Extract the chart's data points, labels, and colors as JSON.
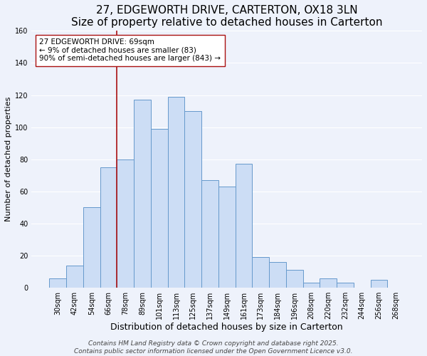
{
  "title": "27, EDGEWORTH DRIVE, CARTERTON, OX18 3LN",
  "subtitle": "Size of property relative to detached houses in Carterton",
  "xlabel": "Distribution of detached houses by size in Carterton",
  "ylabel": "Number of detached properties",
  "bar_labels": [
    "30sqm",
    "42sqm",
    "54sqm",
    "66sqm",
    "78sqm",
    "89sqm",
    "101sqm",
    "113sqm",
    "125sqm",
    "137sqm",
    "149sqm",
    "161sqm",
    "173sqm",
    "184sqm",
    "196sqm",
    "208sqm",
    "220sqm",
    "232sqm",
    "244sqm",
    "256sqm",
    "268sqm"
  ],
  "bar_values": [
    6,
    14,
    50,
    75,
    80,
    117,
    99,
    119,
    110,
    67,
    63,
    77,
    19,
    16,
    11,
    3,
    6,
    3,
    0,
    5,
    0
  ],
  "bar_color": "#ccddf5",
  "bar_edge_color": "#6699cc",
  "ylim": [
    0,
    160
  ],
  "yticks": [
    0,
    20,
    40,
    60,
    80,
    100,
    120,
    140,
    160
  ],
  "vline_color": "#aa1111",
  "annotation_text": "27 EDGEWORTH DRIVE: 69sqm\n← 9% of detached houses are smaller (83)\n90% of semi-detached houses are larger (843) →",
  "annotation_box_color": "#ffffff",
  "annotation_box_edge": "#aa1111",
  "footer1": "Contains HM Land Registry data © Crown copyright and database right 2025.",
  "footer2": "Contains public sector information licensed under the Open Government Licence v3.0.",
  "background_color": "#eef2fb",
  "grid_color": "#ffffff",
  "title_fontsize": 11,
  "xlabel_fontsize": 9,
  "ylabel_fontsize": 8,
  "tick_fontsize": 7,
  "annotation_fontsize": 7.5,
  "footer_fontsize": 6.5
}
